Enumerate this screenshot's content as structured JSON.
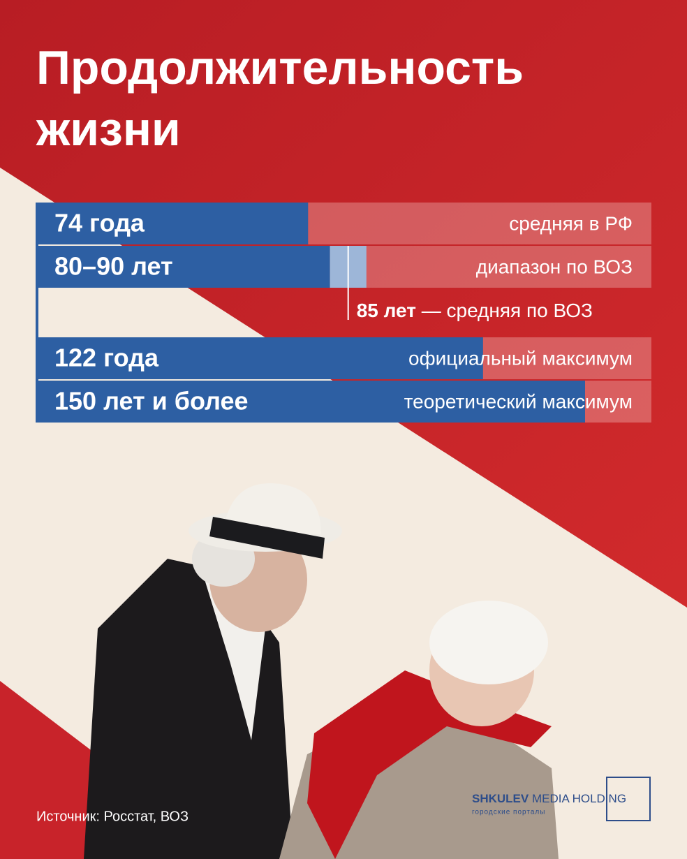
{
  "chart_data": {
    "type": "bar",
    "title": "Продолжительность жизни",
    "rows": [
      {
        "value_label": "74 года",
        "category": "средняя в РФ",
        "value": 74
      },
      {
        "value_label": "80–90 лет",
        "category": "диапазон по ВОЗ",
        "range": [
          80,
          90
        ]
      },
      {
        "value_label": "122 года",
        "category": "официальный максимум",
        "value": 122
      },
      {
        "value_label": "150 лет и более",
        "category": "теоретический максимум",
        "value": 150
      }
    ],
    "marker": {
      "value": 85,
      "value_label": "85 лет",
      "text": "— средняя по ВОЗ"
    },
    "color": "#2d5fa3",
    "range_color": "#9db6d8",
    "source": "Источник: Росстат, ВОЗ",
    "logo": {
      "brand": "SHKULEV",
      "rest": "MEDIA HOLDING",
      "tagline": "городские порталы"
    }
  }
}
